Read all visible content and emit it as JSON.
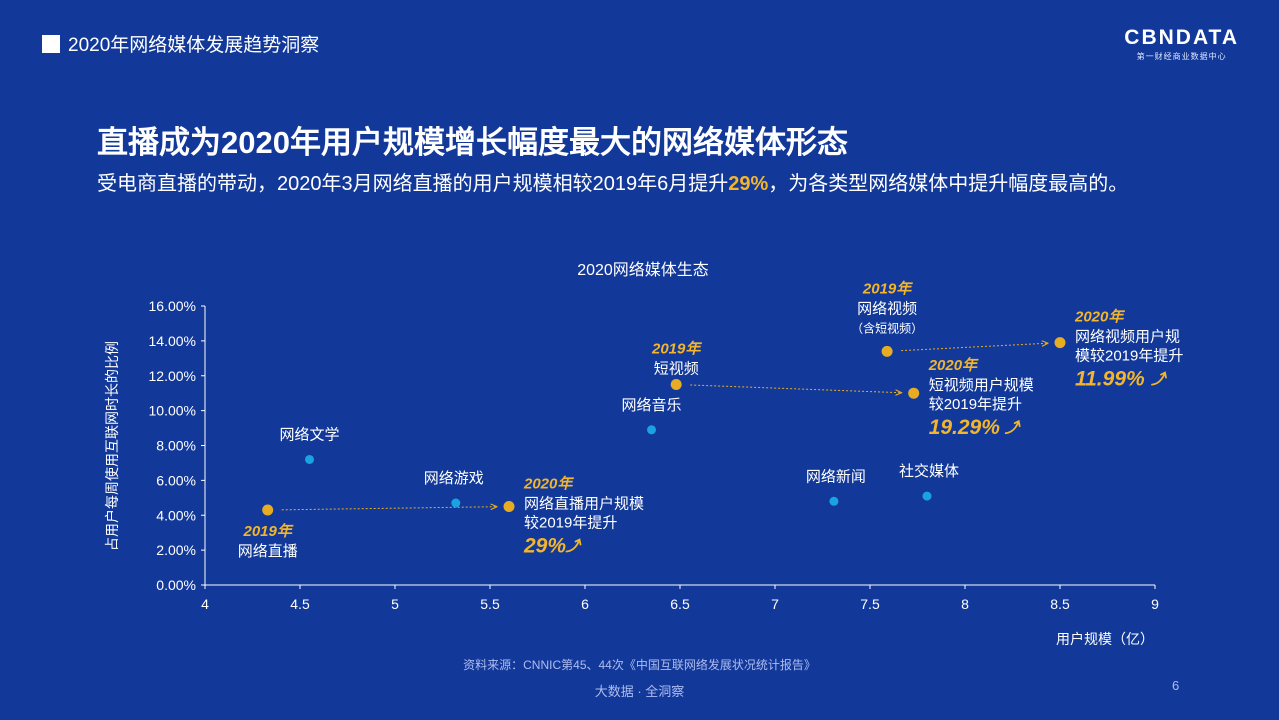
{
  "header": {
    "section_title": "2020年网络媒体发展趋势洞察",
    "brand_logo": "CBNDATA",
    "brand_tagline": "第一财经商业数据中心"
  },
  "main": {
    "title": "直播成为2020年用户规模增长幅度最大的网络媒体形态",
    "subtitle_before": "受电商直播的带动，2020年3月网络直播的用户规模相较2019年6月提升",
    "subtitle_highlight": "29%",
    "subtitle_after": "，为各类型网络媒体中提升幅度最高的。"
  },
  "footer": {
    "source": "资料来源：CNNIC第45、44次《中国互联网络发展状况统计报告》",
    "brand": "大数据 · 全洞察",
    "page_number": "6"
  },
  "colors": {
    "background": "#12399a",
    "highlight": "#f2b52c",
    "point_blue": "#1aa3e0",
    "point_gold": "#e8ac23"
  },
  "chart_data": {
    "type": "scatter",
    "title": "2020网络媒体生态",
    "xlabel": "用户规模（亿）",
    "ylabel": "占用户每周使用互联网时长的比例",
    "xlim": [
      4,
      9
    ],
    "ylim": [
      0,
      16
    ],
    "x_ticks": [
      "4",
      "4.5",
      "5",
      "5.5",
      "6",
      "6.5",
      "7",
      "7.5",
      "8",
      "8.5",
      "9"
    ],
    "y_ticks": [
      "0.00%",
      "2.00%",
      "4.00%",
      "6.00%",
      "8.00%",
      "10.00%",
      "12.00%",
      "14.00%",
      "16.00%"
    ],
    "grid": false,
    "points": [
      {
        "id": "lit",
        "x": 4.55,
        "y": 7.2,
        "color": "blue",
        "labels": [
          "网络文学"
        ]
      },
      {
        "id": "game",
        "x": 5.32,
        "y": 4.7,
        "color": "blue",
        "labels": [
          "网络游戏"
        ]
      },
      {
        "id": "music",
        "x": 6.35,
        "y": 8.9,
        "color": "blue",
        "labels": [
          "网络音乐"
        ]
      },
      {
        "id": "news",
        "x": 7.31,
        "y": 4.8,
        "color": "blue",
        "labels": [
          "网络新闻"
        ]
      },
      {
        "id": "social",
        "x": 7.8,
        "y": 5.1,
        "color": "blue",
        "labels": [
          "社交媒体"
        ]
      },
      {
        "id": "live2019",
        "x": 4.33,
        "y": 4.3,
        "color": "gold",
        "year": "2019年",
        "labels": [
          "网络直播"
        ]
      },
      {
        "id": "live2020",
        "x": 5.6,
        "y": 4.5,
        "color": "gold",
        "year": "2020年",
        "labels": [
          "网络直播用户规模",
          "较2019年提升"
        ],
        "growth": "29%"
      },
      {
        "id": "short2019",
        "x": 6.48,
        "y": 11.5,
        "color": "gold",
        "year": "2019年",
        "labels": [
          "短视频"
        ]
      },
      {
        "id": "short2020",
        "x": 7.73,
        "y": 11.0,
        "color": "gold",
        "year": "2020年",
        "labels": [
          "短视频用户规模",
          "较2019年提升"
        ],
        "growth": "19.29%"
      },
      {
        "id": "video2019",
        "x": 7.59,
        "y": 13.4,
        "color": "gold",
        "year": "2019年",
        "labels": [
          "网络视频",
          "（含短视频）"
        ]
      },
      {
        "id": "video2020",
        "x": 8.5,
        "y": 13.9,
        "color": "gold",
        "year": "2020年",
        "labels": [
          "网络视频用户规",
          "模较2019年提升"
        ],
        "growth": "11.99%"
      }
    ],
    "arrows": [
      {
        "from": "live2019",
        "to": "live2020"
      },
      {
        "from": "short2019",
        "to": "short2020"
      },
      {
        "from": "video2019",
        "to": "video2020"
      }
    ]
  }
}
